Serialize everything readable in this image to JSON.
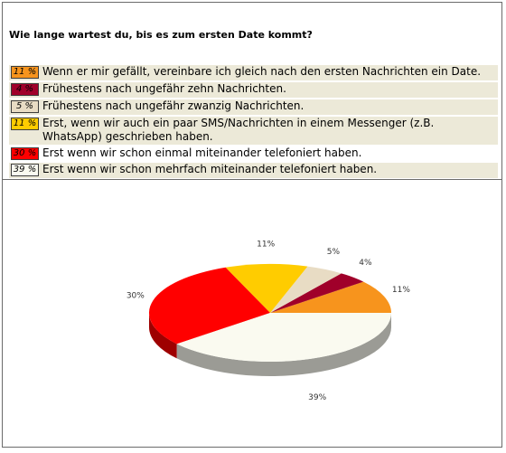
{
  "question": "Wie lange wartest du, bis es zum ersten Date kommt?",
  "options": [
    {
      "percent_label": "11 %",
      "text": "Wenn er mir gefällt, vereinbare ich gleich nach den ersten Nachrichten ein Date.",
      "color": "#f7941d"
    },
    {
      "percent_label": "4 %",
      "text": "Frühestens nach ungefähr zehn Nachrichten.",
      "color": "#a0002a"
    },
    {
      "percent_label": "5 %",
      "text": "Frühestens nach ungefähr zwanzig Nachrichten.",
      "color": "#e8dcc4"
    },
    {
      "percent_label": "11 %",
      "text": "Erst, wenn wir auch ein paar SMS/Nachrichten in einem Messenger (z.B. WhatsApp) geschrieben haben.",
      "color": "#ffcc00"
    },
    {
      "percent_label": "30 %",
      "text": "Erst wenn wir schon einmal miteinander telefoniert haben.",
      "color": "#ff0000"
    },
    {
      "percent_label": "39 %",
      "text": "Erst wenn wir schon mehrfach miteinander telefoniert haben.",
      "color": "#fafaf0"
    }
  ],
  "chart_data": {
    "type": "pie",
    "categories": [
      "Wenn er mir gefällt, vereinbare ich gleich nach den ersten Nachrichten ein Date.",
      "Frühestens nach ungefähr zehn Nachrichten.",
      "Frühestens nach ungefähr zwanzig Nachrichten.",
      "Erst, wenn wir auch ein paar SMS/Nachrichten in einem Messenger (z.B. WhatsApp) geschrieben haben.",
      "Erst wenn wir schon einmal miteinander telefoniert haben.",
      "Erst wenn wir schon mehrfach miteinander telefoniert haben."
    ],
    "values": [
      11,
      4,
      5,
      11,
      30,
      39
    ],
    "labels": [
      "11%",
      "4%",
      "5%",
      "11%",
      "30%",
      "39%"
    ],
    "colors": [
      "#f7941d",
      "#a0002a",
      "#e8dcc4",
      "#ffcc00",
      "#ff0000",
      "#fafaf0"
    ],
    "style": "3d-tilted"
  }
}
